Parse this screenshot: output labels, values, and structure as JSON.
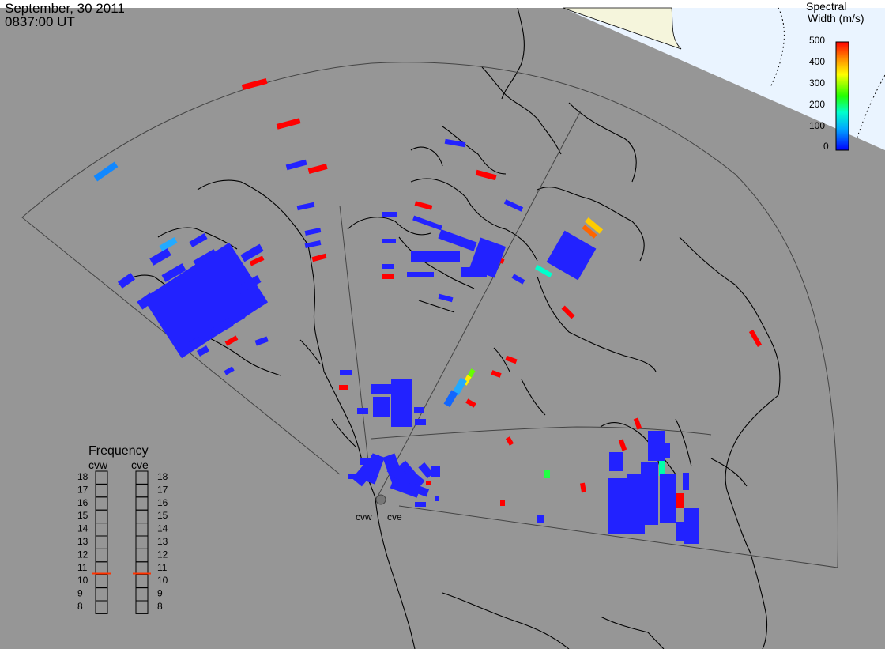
{
  "header": {
    "date": "September, 30 2011",
    "time": "0837:00 UT"
  },
  "colorbar": {
    "title_line1": "Spectral",
    "title_line2": "Width (m/s)",
    "ticks": [
      "500",
      "400",
      "300",
      "200",
      "100",
      "0"
    ]
  },
  "radars": {
    "west": "cvw",
    "east": "cve"
  },
  "frequency": {
    "title": "Frequency",
    "left_label": "cvw",
    "right_label": "cve",
    "scale": [
      "18",
      "17",
      "16",
      "15",
      "14",
      "13",
      "12",
      "11",
      "10",
      "9",
      "8"
    ],
    "cvw_marker_mhz": 10.6,
    "cve_marker_mhz": 10.6
  },
  "colors": {
    "background": "#969696",
    "sea": "#eaf4ff",
    "land_north": "#f5f5dc",
    "coast": "#000000",
    "marker": "#ff3300"
  }
}
